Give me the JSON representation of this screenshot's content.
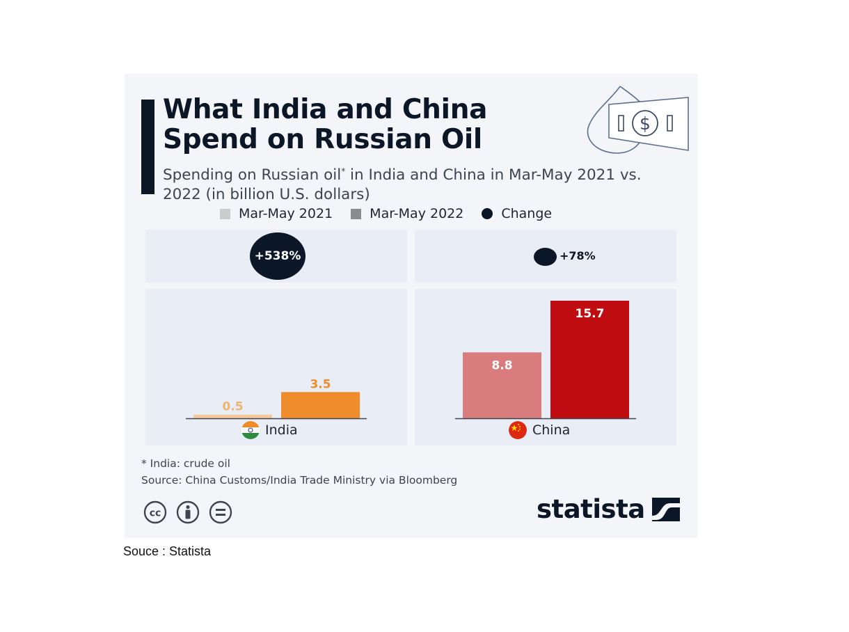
{
  "infographic": {
    "title_line1": "What India and China",
    "title_line2": "Spend on Russian Oil",
    "subtitle_pre": "Spending on Russian oil",
    "subtitle_sup": "*",
    "subtitle_post": " in India and China in Mar-May 2021 vs. 2022  (in billion U.S. dollars)",
    "legend": [
      {
        "label": "Mar-May 2021",
        "color": "#cccccc"
      },
      {
        "label": "Mar-May 2022",
        "color": "#8c8c8c"
      },
      {
        "label": "Change",
        "color": "#0b1726"
      }
    ],
    "note": "* India: crude oil",
    "source": "Source: China Customs/India Trade Ministry via Bloomberg",
    "brand": "statista",
    "icons": [
      "oil-drop-dollar-icon",
      "creative-commons-icon",
      "attribution-icon",
      "no-derivatives-icon",
      "statista-logo-icon"
    ]
  },
  "chart_data": {
    "type": "bar",
    "categories": [
      "India",
      "China"
    ],
    "series": [
      {
        "name": "Mar-May 2021",
        "values": [
          0.5,
          8.8
        ]
      },
      {
        "name": "Mar-May 2022",
        "values": [
          3.5,
          15.7
        ]
      }
    ],
    "change": [
      "+538%",
      "+78%"
    ],
    "ylim": [
      0,
      15.7
    ],
    "colors": {
      "India": {
        "y2021": "#f5c999",
        "y2022": "#ef8d2d"
      },
      "China": {
        "y2021": "#d87c7e",
        "y2022": "#bf0d12"
      }
    },
    "legend_position": "top",
    "grid": false
  },
  "page_footer": "Souce : Statista"
}
